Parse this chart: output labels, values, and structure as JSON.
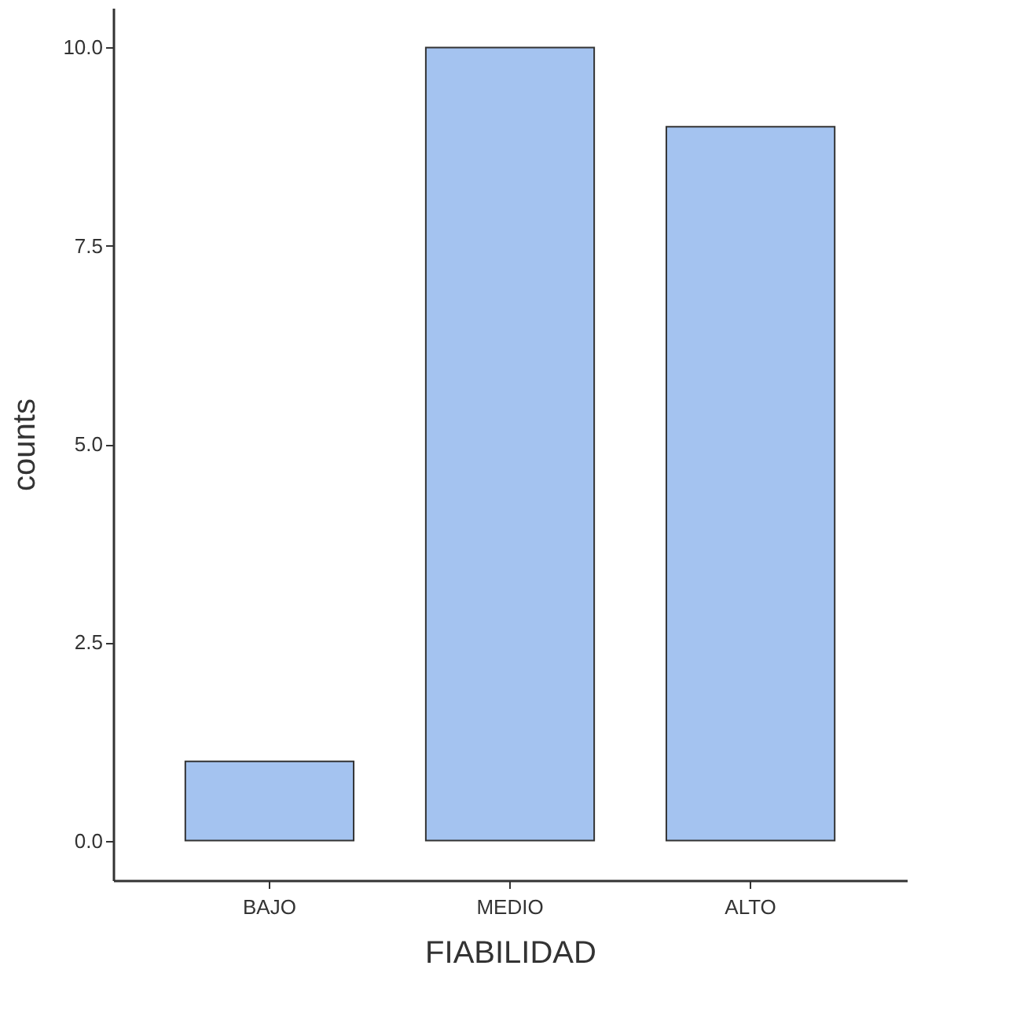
{
  "chart_data": {
    "type": "bar",
    "xlabel": "FIABILIDAD",
    "ylabel": "counts",
    "categories": [
      "BAJO",
      "MEDIO",
      "ALTO"
    ],
    "values": [
      1,
      10,
      9
    ],
    "color": "#a4c3f0",
    "ylim": [
      -0.5,
      10.5
    ],
    "yticks": [
      {
        "value": 0,
        "label": "0.0"
      },
      {
        "value": 2.5,
        "label": "2.5"
      },
      {
        "value": 5,
        "label": "5.0"
      },
      {
        "value": 7.5,
        "label": "7.5"
      },
      {
        "value": 10,
        "label": "10.0"
      }
    ],
    "grid": false
  }
}
